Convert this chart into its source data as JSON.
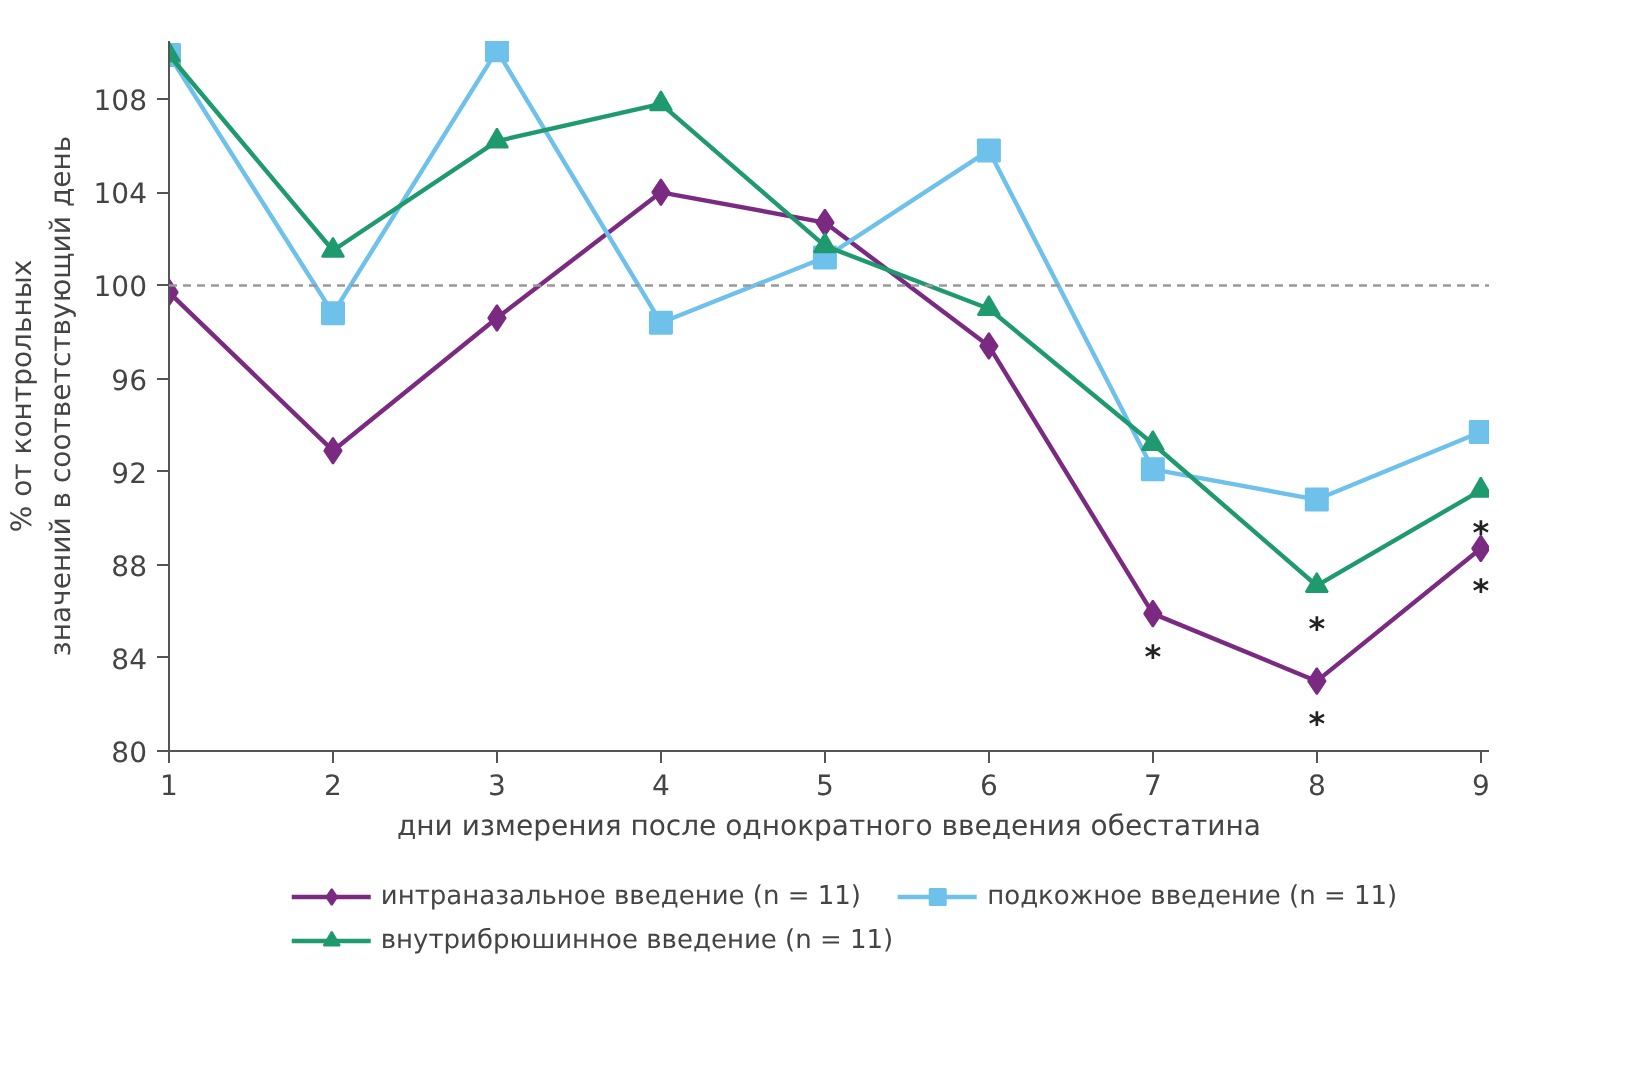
{
  "chart_data": {
    "type": "line",
    "xlabel": "дни измерения после однократного введения обестатина",
    "ylabel": "% от контрольных значений в соответствующий день",
    "x": [
      1,
      2,
      3,
      4,
      5,
      6,
      7,
      8,
      9
    ],
    "series": [
      {
        "name": "интраназальное введение (n = 11)",
        "color": "#7b2a82",
        "marker": "diamond",
        "values": [
          99.7,
          92.9,
          98.6,
          104.0,
          102.7,
          97.4,
          85.9,
          83.0,
          88.7
        ]
      },
      {
        "name": "подкожное введение (n = 11)",
        "color": "#6ec1ea",
        "marker": "square",
        "values": [
          109.9,
          98.8,
          110.1,
          98.4,
          101.2,
          105.8,
          92.1,
          90.8,
          93.7
        ]
      },
      {
        "name": "внутрибрюшинное введение (n = 11)",
        "color": "#1f9a6e",
        "marker": "triangle",
        "values": [
          109.9,
          101.5,
          106.2,
          107.8,
          101.7,
          99.0,
          93.2,
          87.1,
          91.2
        ]
      }
    ],
    "xlim": [
      1,
      9.05
    ],
    "ylim": [
      80,
      110.5
    ],
    "xticks": [
      1,
      2,
      3,
      4,
      5,
      6,
      7,
      8,
      9
    ],
    "yticks": [
      80,
      84,
      88,
      92,
      96,
      100,
      104,
      108
    ],
    "ref_lines": [
      {
        "axis": "y",
        "value": 100,
        "color": "#999999",
        "line_style": "dashed"
      }
    ],
    "annotations": [
      {
        "text": "*",
        "x": 7,
        "y": 85.9
      },
      {
        "text": "*",
        "x": 8,
        "y": 83.0
      },
      {
        "text": "*",
        "x": 8,
        "y": 87.1
      },
      {
        "text": "*",
        "x": 9,
        "y": 88.7
      },
      {
        "text": "*",
        "x": 9,
        "y": 91.2
      }
    ],
    "grid": false,
    "legend": "bottom"
  }
}
